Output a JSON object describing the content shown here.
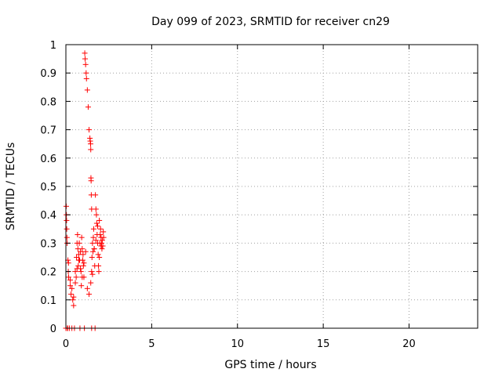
{
  "chart_data": {
    "type": "scatter",
    "title": "Day 099 of 2023, SRMTID for receiver cn29",
    "xlabel": "GPS time / hours",
    "ylabel": "SRMTID / TECUs",
    "xlim": [
      0,
      24
    ],
    "ylim": [
      0,
      1
    ],
    "x_ticks": [
      "0",
      "5",
      "10",
      "15",
      "20"
    ],
    "y_ticks": [
      "0",
      "0.1",
      "0.2",
      "0.3",
      "0.4",
      "0.5",
      "0.6",
      "0.7",
      "0.8",
      "0.9",
      "1"
    ],
    "grid": true,
    "legend": "none",
    "marker": "plus",
    "color": "#ff0000",
    "series": [
      {
        "x": [
          0.0,
          0.02,
          0.03,
          0.04,
          0.05,
          0.06,
          0.07,
          0.08,
          0.1,
          0.12,
          0.14,
          0.16,
          0.2,
          0.25,
          0.3,
          0.35,
          0.4,
          0.45,
          0.5,
          0.55,
          0.6,
          0.62,
          0.65,
          0.68,
          0.7,
          0.72,
          0.75,
          0.78,
          0.8,
          0.82,
          0.85,
          0.88,
          0.9,
          0.92,
          0.95,
          0.98,
          1.0,
          1.02,
          1.05,
          1.08,
          1.1,
          1.12,
          1.15,
          1.18,
          1.2,
          1.25,
          1.3,
          1.35,
          1.4,
          1.42,
          1.44,
          1.45,
          1.46,
          1.47,
          1.48,
          1.5,
          1.5,
          1.5,
          1.52,
          1.55,
          1.58,
          1.6,
          1.62,
          1.65,
          1.68,
          1.7,
          1.72,
          1.75,
          1.78,
          1.8,
          1.82,
          1.85,
          1.88,
          1.9,
          1.92,
          1.95,
          1.98,
          2.0,
          2.02,
          2.05,
          2.08,
          2.1,
          2.12,
          2.15,
          2.18,
          2.2,
          0.85,
          0.95,
          1.05,
          1.15,
          1.25,
          1.35,
          1.45,
          1.55,
          1.65,
          1.75,
          1.85,
          1.95,
          2.05,
          0.15,
          0.25,
          0.35,
          0.45,
          0.55,
          0.65,
          0.75
        ],
        "y": [
          0.0,
          0.43,
          0.4,
          0.38,
          0.35,
          0.32,
          0.3,
          0.0,
          0.0,
          0.24,
          0.2,
          0.18,
          0.0,
          0.15,
          0.12,
          0.0,
          0.1,
          0.08,
          0.0,
          0.2,
          0.18,
          0.25,
          0.3,
          0.33,
          0.28,
          0.22,
          0.26,
          0.3,
          0.24,
          0.0,
          0.27,
          0.2,
          0.15,
          0.32,
          0.28,
          0.24,
          0.26,
          0.22,
          0.18,
          0.0,
          0.97,
          0.95,
          0.93,
          0.9,
          0.88,
          0.84,
          0.78,
          0.7,
          0.67,
          0.66,
          0.65,
          0.63,
          0.53,
          0.52,
          0.47,
          0.42,
          0.2,
          0.0,
          0.25,
          0.3,
          0.27,
          0.32,
          0.35,
          0.28,
          0.22,
          0.0,
          0.47,
          0.42,
          0.4,
          0.37,
          0.33,
          0.3,
          0.26,
          0.22,
          0.2,
          0.25,
          0.3,
          0.33,
          0.35,
          0.32,
          0.3,
          0.28,
          0.31,
          0.29,
          0.34,
          0.32,
          0.21,
          0.18,
          0.23,
          0.27,
          0.14,
          0.12,
          0.16,
          0.19,
          0.28,
          0.31,
          0.36,
          0.38,
          0.29,
          0.23,
          0.17,
          0.14,
          0.11,
          0.16,
          0.21,
          0.24
        ],
        "color": "#ff0000"
      }
    ]
  }
}
